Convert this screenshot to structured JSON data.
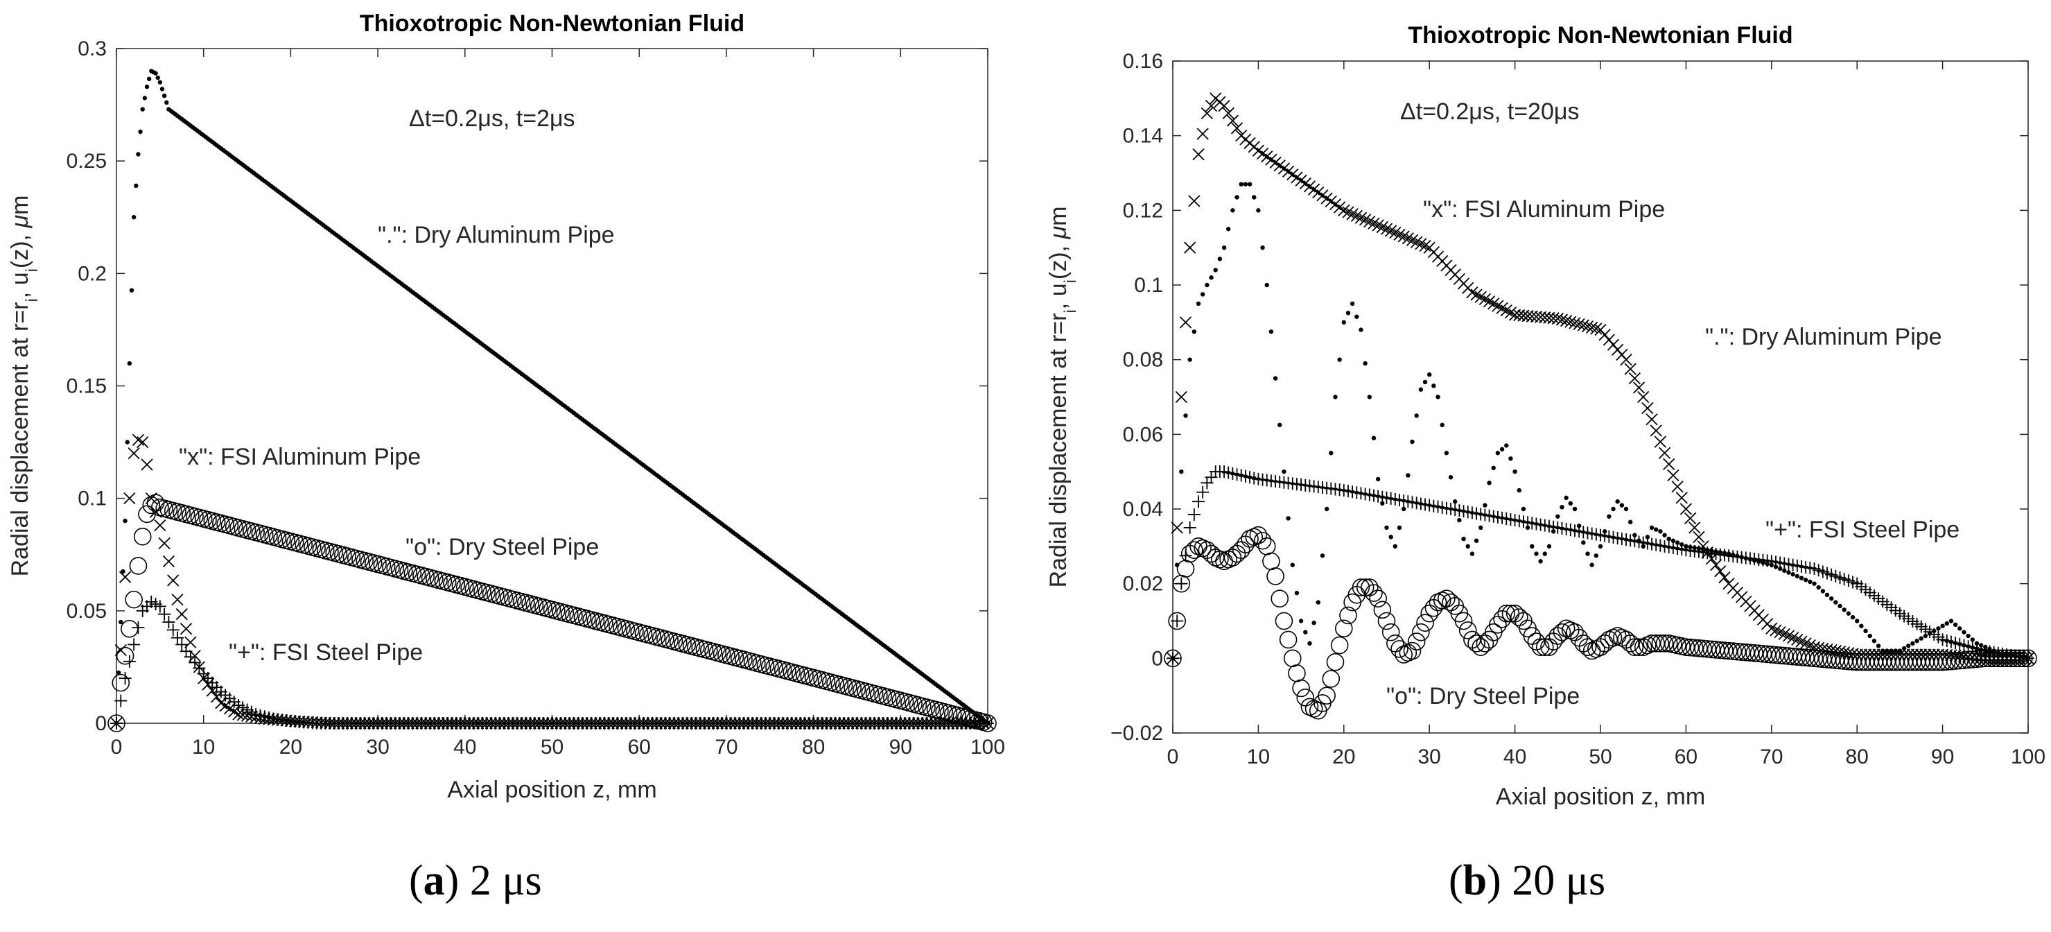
{
  "figure": {
    "captions": [
      {
        "paren_open": "(",
        "letter": "a",
        "paren_close": ")",
        "text": " 2 μs"
      },
      {
        "paren_open": "(",
        "letter": "b",
        "paren_close": ")",
        "text": " 20 μs"
      }
    ]
  },
  "chart_data": [
    {
      "type": "scatter",
      "title": "Thioxotropic Non-Newtonian Fluid",
      "xlabel": "Axial position z, mm",
      "ylabel_parts": [
        "Radial displacement at r=r",
        "i",
        ", u",
        "i",
        "(z), ",
        "μ",
        "m"
      ],
      "annotation": "Δt=0.2μs, t=2μs",
      "xlim": [
        0,
        100
      ],
      "ylim": [
        0,
        0.3
      ],
      "xticks": [
        0,
        10,
        20,
        30,
        40,
        50,
        60,
        70,
        80,
        90,
        100
      ],
      "xtick_labels": [
        "0",
        "10",
        "20",
        "30",
        "40",
        "50",
        "60",
        "70",
        "80",
        "90",
        "100"
      ],
      "yticks": [
        0,
        0.05,
        0.1,
        0.15,
        0.2,
        0.25,
        0.3
      ],
      "ytick_labels": [
        "0",
        "0.05",
        "0.1",
        "0.15",
        "0.2",
        "0.25",
        "0.3"
      ],
      "grid": false,
      "series": [
        {
          "name": "Dry Aluminum Pipe",
          "marker": ".",
          "label": "\".\": Dry Aluminum Pipe",
          "x": [
            0,
            1,
            1.5,
            2,
            2.5,
            3,
            3.5,
            4,
            4.5,
            5,
            6,
            100
          ],
          "y": [
            0,
            0.09,
            0.16,
            0.225,
            0.253,
            0.273,
            0.283,
            0.29,
            0.289,
            0.285,
            0.273,
            0
          ]
        },
        {
          "name": "FSI Aluminum Pipe",
          "marker": "x",
          "label": "\"x\": FSI Aluminum Pipe",
          "x": [
            0,
            1,
            1.5,
            2,
            2.5,
            3,
            3.5,
            4,
            5,
            6,
            7,
            8,
            9,
            10,
            12,
            14,
            17,
            20,
            25,
            100
          ],
          "y": [
            0,
            0.065,
            0.1,
            0.12,
            0.126,
            0.125,
            0.115,
            0.1,
            0.088,
            0.072,
            0.055,
            0.042,
            0.03,
            0.02,
            0.009,
            0.004,
            0.002,
            0.001,
            0,
            0
          ]
        },
        {
          "name": "Dry Steel Pipe",
          "marker": "o",
          "label": "\"o\": Dry Steel Pipe",
          "x": [
            0,
            0.5,
            1,
            1.5,
            2,
            2.5,
            3,
            3.5,
            4,
            4.5,
            5,
            100
          ],
          "y": [
            0,
            0.018,
            0.03,
            0.042,
            0.055,
            0.07,
            0.083,
            0.093,
            0.097,
            0.098,
            0.096,
            0
          ]
        },
        {
          "name": "FSI Steel Pipe",
          "marker": "+",
          "label": "\"+\": FSI Steel Pipe",
          "x": [
            0,
            1,
            2,
            3,
            4,
            5,
            6,
            7,
            8,
            10,
            12,
            14,
            16,
            18,
            20,
            23,
            100
          ],
          "y": [
            0,
            0.02,
            0.035,
            0.05,
            0.054,
            0.052,
            0.045,
            0.038,
            0.032,
            0.022,
            0.014,
            0.008,
            0.004,
            0.002,
            0.001,
            0,
            0
          ]
        }
      ]
    },
    {
      "type": "scatter",
      "title": "Thioxotropic Non-Newtonian Fluid",
      "xlabel": "Axial position z, mm",
      "ylabel_parts": [
        "Radial displacement at r=r",
        "i",
        ", u",
        "i",
        "(z), ",
        "μ",
        "m"
      ],
      "annotation": "Δt=0.2μs, t=20μs",
      "xlim": [
        0,
        100
      ],
      "ylim": [
        -0.02,
        0.16
      ],
      "xticks": [
        0,
        10,
        20,
        30,
        40,
        50,
        60,
        70,
        80,
        90,
        100
      ],
      "xtick_labels": [
        "0",
        "10",
        "20",
        "30",
        "40",
        "50",
        "60",
        "70",
        "80",
        "90",
        "100"
      ],
      "yticks": [
        -0.02,
        0,
        0.02,
        0.04,
        0.06,
        0.08,
        0.1,
        0.12,
        0.14,
        0.16
      ],
      "ytick_labels": [
        "−0.02",
        "0",
        "0.02",
        "0.04",
        "0.06",
        "0.08",
        "0.1",
        "0.12",
        "0.14",
        "0.16"
      ],
      "grid": false,
      "series": [
        {
          "name": "FSI Aluminum Pipe",
          "marker": "x",
          "label": "\"x\": FSI Aluminum Pipe",
          "x": [
            0,
            1,
            2,
            3,
            4,
            5,
            6,
            8,
            10,
            15,
            20,
            25,
            30,
            35,
            40,
            45,
            50,
            53,
            55,
            58,
            60,
            62,
            65,
            70,
            75,
            80,
            85,
            90,
            95,
            100
          ],
          "y": [
            0,
            0.07,
            0.11,
            0.135,
            0.146,
            0.15,
            0.148,
            0.14,
            0.136,
            0.128,
            0.12,
            0.115,
            0.11,
            0.098,
            0.092,
            0.091,
            0.088,
            0.08,
            0.07,
            0.052,
            0.04,
            0.03,
            0.02,
            0.008,
            0.003,
            0.001,
            0.001,
            0.001,
            0,
            0
          ]
        },
        {
          "name": "Dry Aluminum Pipe",
          "marker": ".",
          "label": "\".\": Dry Aluminum Pipe",
          "x": [
            0,
            1,
            2,
            3,
            4,
            5,
            6,
            7,
            8,
            9,
            10,
            11,
            12,
            13,
            14,
            15,
            16,
            17,
            18,
            19,
            20,
            21,
            22,
            23,
            24,
            25,
            26,
            27,
            28,
            29,
            30,
            31,
            32,
            33,
            34,
            35,
            36,
            37,
            38,
            39,
            40,
            41,
            42,
            43,
            44,
            45,
            46,
            47,
            48,
            49,
            50,
            51,
            52,
            53,
            54,
            55,
            56,
            57,
            58,
            59,
            60,
            65,
            70,
            75,
            80,
            83,
            85,
            88,
            91,
            94,
            97,
            100
          ],
          "y": [
            0,
            0.05,
            0.08,
            0.095,
            0.1,
            0.104,
            0.11,
            0.12,
            0.127,
            0.127,
            0.12,
            0.1,
            0.075,
            0.05,
            0.025,
            0.01,
            0.004,
            0.015,
            0.04,
            0.07,
            0.09,
            0.095,
            0.088,
            0.07,
            0.048,
            0.035,
            0.03,
            0.04,
            0.058,
            0.072,
            0.076,
            0.07,
            0.055,
            0.042,
            0.032,
            0.028,
            0.035,
            0.047,
            0.055,
            0.057,
            0.05,
            0.04,
            0.03,
            0.026,
            0.03,
            0.038,
            0.043,
            0.04,
            0.031,
            0.025,
            0.03,
            0.038,
            0.042,
            0.04,
            0.033,
            0.03,
            0.035,
            0.034,
            0.032,
            0.031,
            0.03,
            0.028,
            0.025,
            0.02,
            0.01,
            0.002,
            0.002,
            0.006,
            0.01,
            0.004,
            0.001,
            0
          ]
        },
        {
          "name": "FSI Steel Pipe",
          "marker": "+",
          "label": "\"+\": FSI Steel Pipe",
          "x": [
            0,
            1,
            2,
            3,
            4,
            5,
            6,
            8,
            10,
            20,
            30,
            40,
            50,
            60,
            70,
            75,
            80,
            85,
            90,
            95,
            100
          ],
          "y": [
            0,
            0.02,
            0.035,
            0.042,
            0.047,
            0.05,
            0.05,
            0.049,
            0.048,
            0.045,
            0.041,
            0.037,
            0.033,
            0.029,
            0.026,
            0.024,
            0.02,
            0.012,
            0.005,
            0.002,
            0
          ]
        },
        {
          "name": "Dry Steel Pipe",
          "marker": "o",
          "label": "\"o\": Dry Steel Pipe",
          "x": [
            0,
            1,
            2,
            3,
            4,
            5,
            6,
            7,
            8,
            9,
            10,
            11,
            12,
            13,
            14,
            15,
            16,
            17,
            18,
            19,
            20,
            21,
            22,
            23,
            24,
            25,
            26,
            27,
            28,
            29,
            30,
            31,
            32,
            33,
            34,
            35,
            36,
            37,
            38,
            39,
            40,
            41,
            42,
            43,
            44,
            45,
            46,
            47,
            48,
            49,
            50,
            51,
            52,
            53,
            54,
            55,
            56,
            58,
            60,
            65,
            70,
            75,
            80,
            85,
            90,
            95,
            100
          ],
          "y": [
            0,
            0.02,
            0.028,
            0.03,
            0.029,
            0.027,
            0.026,
            0.027,
            0.029,
            0.032,
            0.033,
            0.03,
            0.022,
            0.01,
            0,
            -0.008,
            -0.013,
            -0.014,
            -0.01,
            -0.001,
            0.008,
            0.015,
            0.019,
            0.019,
            0.016,
            0.01,
            0.004,
            0.001,
            0.002,
            0.007,
            0.012,
            0.015,
            0.016,
            0.014,
            0.01,
            0.005,
            0.003,
            0.005,
            0.009,
            0.012,
            0.012,
            0.01,
            0.006,
            0.003,
            0.003,
            0.006,
            0.008,
            0.007,
            0.004,
            0.002,
            0.003,
            0.005,
            0.006,
            0.005,
            0.003,
            0.003,
            0.004,
            0.004,
            0.003,
            0.002,
            0.001,
            0,
            -0.001,
            -0.001,
            -0.001,
            0,
            0
          ]
        }
      ]
    }
  ]
}
